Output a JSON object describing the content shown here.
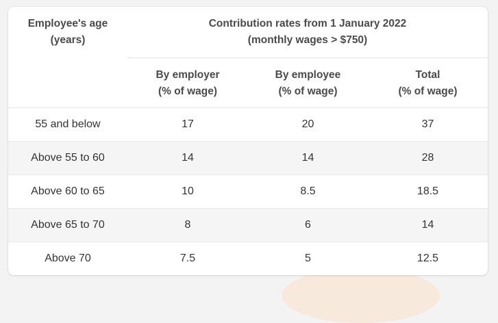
{
  "table": {
    "age_header": [
      "Employee's age",
      "(years)"
    ],
    "contribution_header": [
      "Contribution rates from 1 January 2022",
      "(monthly wages > $750)"
    ],
    "sub_headers": [
      [
        "By employer",
        "(% of wage)"
      ],
      [
        "By employee",
        "(% of wage)"
      ],
      [
        "Total",
        "(% of wage)"
      ]
    ],
    "rows": [
      {
        "age": "55 and below",
        "employer": "17",
        "employee": "20",
        "total": "37"
      },
      {
        "age": "Above 55 to 60",
        "employer": "14",
        "employee": "14",
        "total": "28"
      },
      {
        "age": "Above 60 to 65",
        "employer": "10",
        "employee": "8.5",
        "total": "18.5"
      },
      {
        "age": "Above 65 to 70",
        "employer": "8",
        "employee": "6",
        "total": "14"
      },
      {
        "age": "Above 70",
        "employer": "7.5",
        "employee": "5",
        "total": "12.5"
      }
    ]
  },
  "colors": {
    "header_text": "#4a4a4a",
    "body_text": "#333333",
    "stripe": "#f5f5f5",
    "border": "#e4e4e4"
  }
}
